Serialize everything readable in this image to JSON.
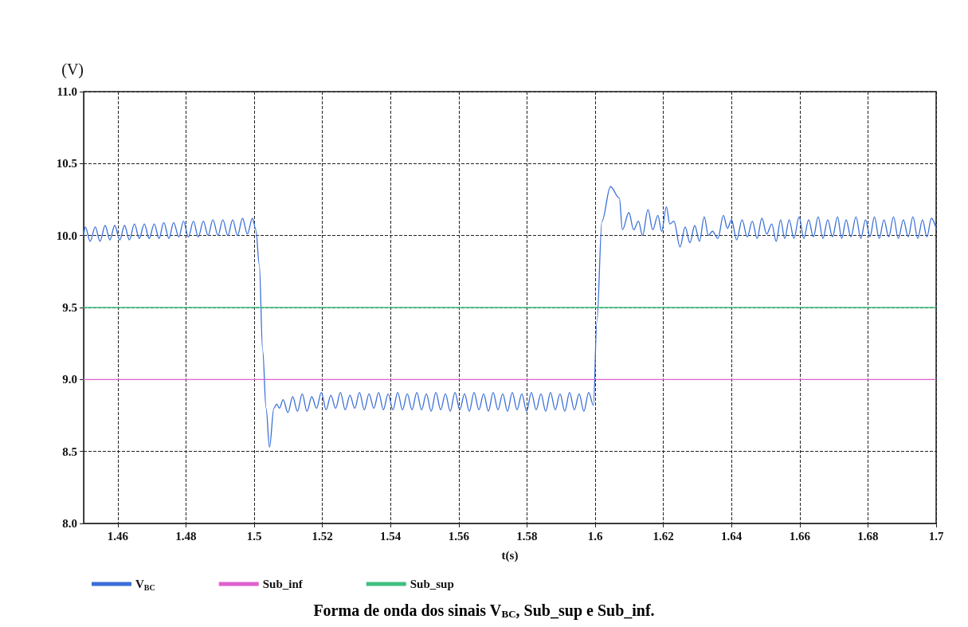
{
  "chart_data": {
    "type": "line",
    "xlabel": "t(s)",
    "ylabel": "(V)",
    "xlim": [
      1.45,
      1.7
    ],
    "xticks": [
      1.46,
      1.48,
      1.5,
      1.52,
      1.54,
      1.56,
      1.58,
      1.6,
      1.62,
      1.64,
      1.66,
      1.68,
      1.7
    ],
    "ylim": [
      8.0,
      11.0
    ],
    "yticks": [
      {
        "value": 8.0,
        "label": "8.0"
      },
      8.5,
      {
        "value": 9.0,
        "label": "9.0"
      },
      9.5,
      {
        "value": 10.0,
        "label": "10.0"
      },
      10.5,
      {
        "value": 11.0,
        "label": "11.0"
      }
    ],
    "grid": true,
    "legend": "bottom left",
    "marker": "none",
    "line_style": "dashed",
    "annotations": [
      "Forma de onda dos sinais V$_{BC}$, Sub_sup e Sub_inf."
    ],
    "series": [
      {
        "name": "V$_{BC}$",
        "color": "#3a6fd8",
        "line_style": "solid",
        "x": [
          1.45,
          1.4505,
          1.4519,
          1.4534,
          1.4548,
          1.4563,
          1.4577,
          1.4591,
          1.4606,
          1.462,
          1.4634,
          1.4649,
          1.4663,
          1.4678,
          1.4692,
          1.4707,
          1.4721,
          1.4735,
          1.475,
          1.4764,
          1.4779,
          1.4793,
          1.4807,
          1.4822,
          1.4836,
          1.4851,
          1.4865,
          1.4879,
          1.4894,
          1.4908,
          1.4923,
          1.4937,
          1.4951,
          1.4966,
          1.498,
          1.4995,
          1.5005,
          1.5015,
          1.5025,
          1.5035,
          1.5045,
          1.5058,
          1.5066,
          1.5074,
          1.5085,
          1.5099,
          1.5113,
          1.5127,
          1.5141,
          1.5155,
          1.5169,
          1.5183,
          1.5197,
          1.5211,
          1.5225,
          1.5239,
          1.5253,
          1.5267,
          1.5281,
          1.5295,
          1.5309,
          1.5323,
          1.5337,
          1.5351,
          1.5365,
          1.5379,
          1.5393,
          1.5407,
          1.5421,
          1.5435,
          1.5449,
          1.5463,
          1.5477,
          1.5491,
          1.5505,
          1.5519,
          1.5533,
          1.5547,
          1.5561,
          1.5575,
          1.5589,
          1.5603,
          1.5617,
          1.5631,
          1.5645,
          1.5659,
          1.5673,
          1.5687,
          1.5701,
          1.5715,
          1.5729,
          1.5743,
          1.5757,
          1.5771,
          1.5785,
          1.5799,
          1.5813,
          1.5827,
          1.5841,
          1.5855,
          1.5869,
          1.5883,
          1.5897,
          1.5911,
          1.5925,
          1.5939,
          1.5953,
          1.5967,
          1.5981,
          1.5995,
          1.6005,
          1.602,
          1.6045,
          1.6071,
          1.608,
          1.6099,
          1.6113,
          1.6127,
          1.6139,
          1.6155,
          1.6169,
          1.6184,
          1.6195,
          1.6209,
          1.6219,
          1.6231,
          1.6249,
          1.6264,
          1.6278,
          1.6292,
          1.6306,
          1.632,
          1.6332,
          1.6344,
          1.636,
          1.6376,
          1.6388,
          1.64,
          1.6415,
          1.6431,
          1.6446,
          1.6461,
          1.6475,
          1.6489,
          1.6503,
          1.6518,
          1.6531,
          1.6544,
          1.6556,
          1.6569,
          1.6583,
          1.6598,
          1.6612,
          1.6626,
          1.664,
          1.6654,
          1.6668,
          1.6682,
          1.6696,
          1.6711,
          1.6723,
          1.6736,
          1.675,
          1.6765,
          1.6779,
          1.6793,
          1.6806,
          1.6819,
          1.6833,
          1.6847,
          1.6861,
          1.6875,
          1.6889,
          1.6904,
          1.6918,
          1.6932,
          1.6946,
          1.696,
          1.6973,
          1.6986,
          1.7
        ],
        "values": [
          10.0,
          10.06,
          9.96,
          10.06,
          9.96,
          10.07,
          9.97,
          10.07,
          9.97,
          10.07,
          9.97,
          10.08,
          9.98,
          10.08,
          9.98,
          10.08,
          9.98,
          10.09,
          9.98,
          10.09,
          9.99,
          10.1,
          9.99,
          10.1,
          9.99,
          10.1,
          10.0,
          10.11,
          10.0,
          10.11,
          10.0,
          10.11,
          10.0,
          10.12,
          10.01,
          10.12,
          10.04,
          9.8,
          9.2,
          8.8,
          8.53,
          8.8,
          8.83,
          8.8,
          8.86,
          8.77,
          8.88,
          8.78,
          8.9,
          8.78,
          8.88,
          8.8,
          8.91,
          8.79,
          8.89,
          8.8,
          8.91,
          8.79,
          8.89,
          8.8,
          8.91,
          8.79,
          8.9,
          8.8,
          8.91,
          8.79,
          8.9,
          8.79,
          8.91,
          8.79,
          8.9,
          8.79,
          8.91,
          8.79,
          8.9,
          8.78,
          8.91,
          8.79,
          8.9,
          8.78,
          8.91,
          8.79,
          8.9,
          8.78,
          8.91,
          8.79,
          8.9,
          8.78,
          8.91,
          8.79,
          8.9,
          8.78,
          8.91,
          8.79,
          8.9,
          8.78,
          8.91,
          8.79,
          8.9,
          8.78,
          8.91,
          8.79,
          8.9,
          8.78,
          8.91,
          8.79,
          8.9,
          8.78,
          8.91,
          8.82,
          9.4,
          10.1,
          10.34,
          10.26,
          10.04,
          10.16,
          10.04,
          10.1,
          10.0,
          10.18,
          10.04,
          10.14,
          10.03,
          10.2,
          10.08,
          10.1,
          9.92,
          10.06,
          9.95,
          10.07,
          9.96,
          10.13,
          10.0,
          10.03,
          9.98,
          10.14,
          10.05,
          10.11,
          9.97,
          10.11,
          9.99,
          10.1,
          9.98,
          10.12,
          10.01,
          10.08,
          9.96,
          10.11,
          9.98,
          10.11,
          9.98,
          10.13,
          9.98,
          10.11,
          9.99,
          10.13,
          9.98,
          10.11,
          9.99,
          10.13,
          9.98,
          10.11,
          9.99,
          10.13,
          9.98,
          10.11,
          9.99,
          10.13,
          9.98,
          10.11,
          9.99,
          10.13,
          9.98,
          10.11,
          9.99,
          10.13,
          9.98,
          10.11,
          9.99,
          10.12,
          10.05
        ]
      },
      {
        "name": "Sub_inf",
        "color": "#e060d0",
        "line_style": "solid",
        "x": [
          1.45,
          1.7
        ],
        "values": [
          9.0,
          9.0
        ]
      },
      {
        "name": "Sub_sup",
        "color": "#40c080",
        "line_style": "solid",
        "x": [
          1.45,
          1.7
        ],
        "values": [
          9.5,
          9.5
        ]
      }
    ]
  }
}
